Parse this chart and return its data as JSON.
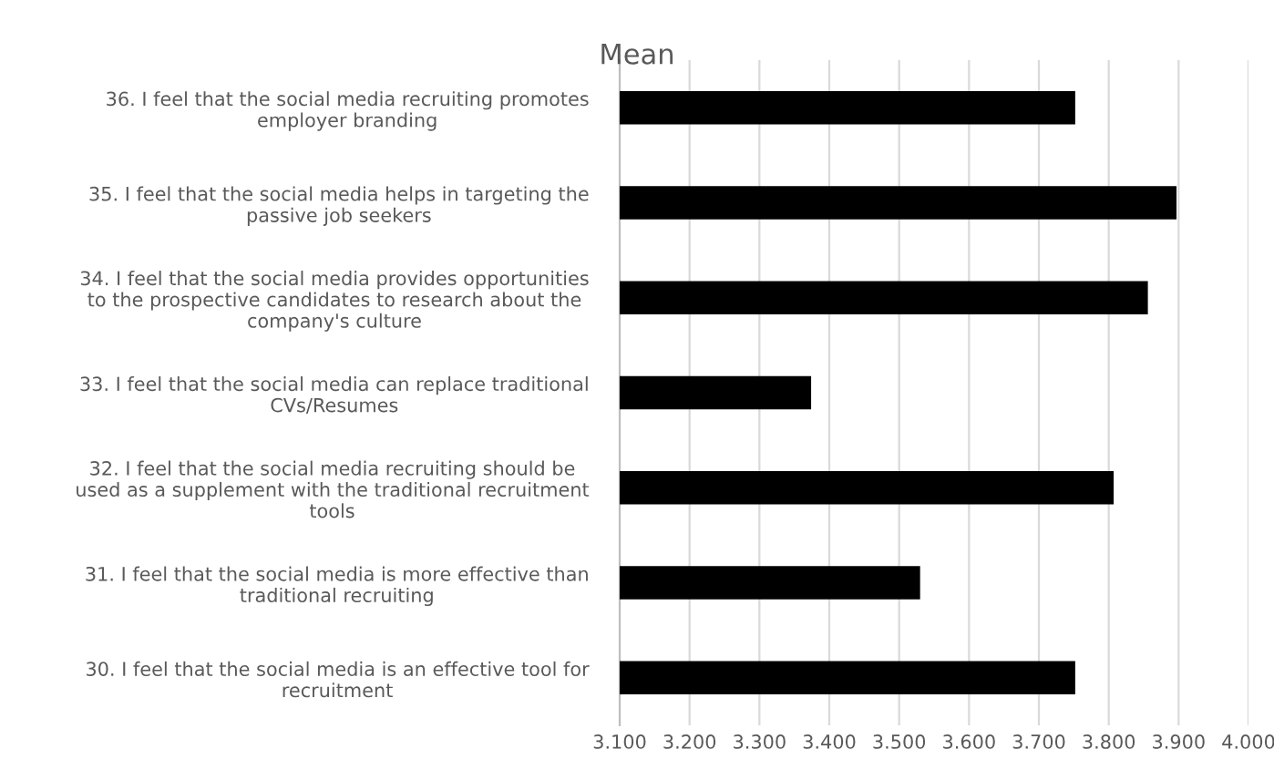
{
  "chart_data": {
    "type": "bar",
    "orientation": "horizontal",
    "title": "Mean",
    "categories": [
      "36. I feel that the social media recruiting promotes\nemployer branding",
      "35. I feel that the social media helps in targeting the\npassive job seekers",
      "34. I feel that the social media provides opportunities\nto the prospective candidates to research about the\ncompany's culture",
      "33. I feel that the social media can replace traditional\nCVs/Resumes",
      "32. I feel that the social media recruiting should be\nused as a supplement with the traditional recruitment\ntools",
      "31. I feel that the social media is more effective than\ntraditional recruiting",
      "30. I feel that the social media is an effective tool for\nrecruitment"
    ],
    "values": [
      3.752,
      3.897,
      3.856,
      3.374,
      3.807,
      3.53,
      3.752
    ],
    "color": "#000000",
    "xlim": [
      3.1,
      4.0
    ],
    "xticks": [
      {
        "value": 3.1,
        "label": "3.100"
      },
      {
        "value": 3.2,
        "label": "3.200"
      },
      {
        "value": 3.3,
        "label": "3.300"
      },
      {
        "value": 3.4,
        "label": "3.400"
      },
      {
        "value": 3.5,
        "label": "3.500"
      },
      {
        "value": 3.6,
        "label": "3.600"
      },
      {
        "value": 3.7,
        "label": "3.700"
      },
      {
        "value": 3.8,
        "label": "3.800"
      },
      {
        "value": 3.9,
        "label": "3.900"
      },
      {
        "value": 4.0,
        "label": "4.000"
      }
    ],
    "grid": "x",
    "legend": false
  }
}
